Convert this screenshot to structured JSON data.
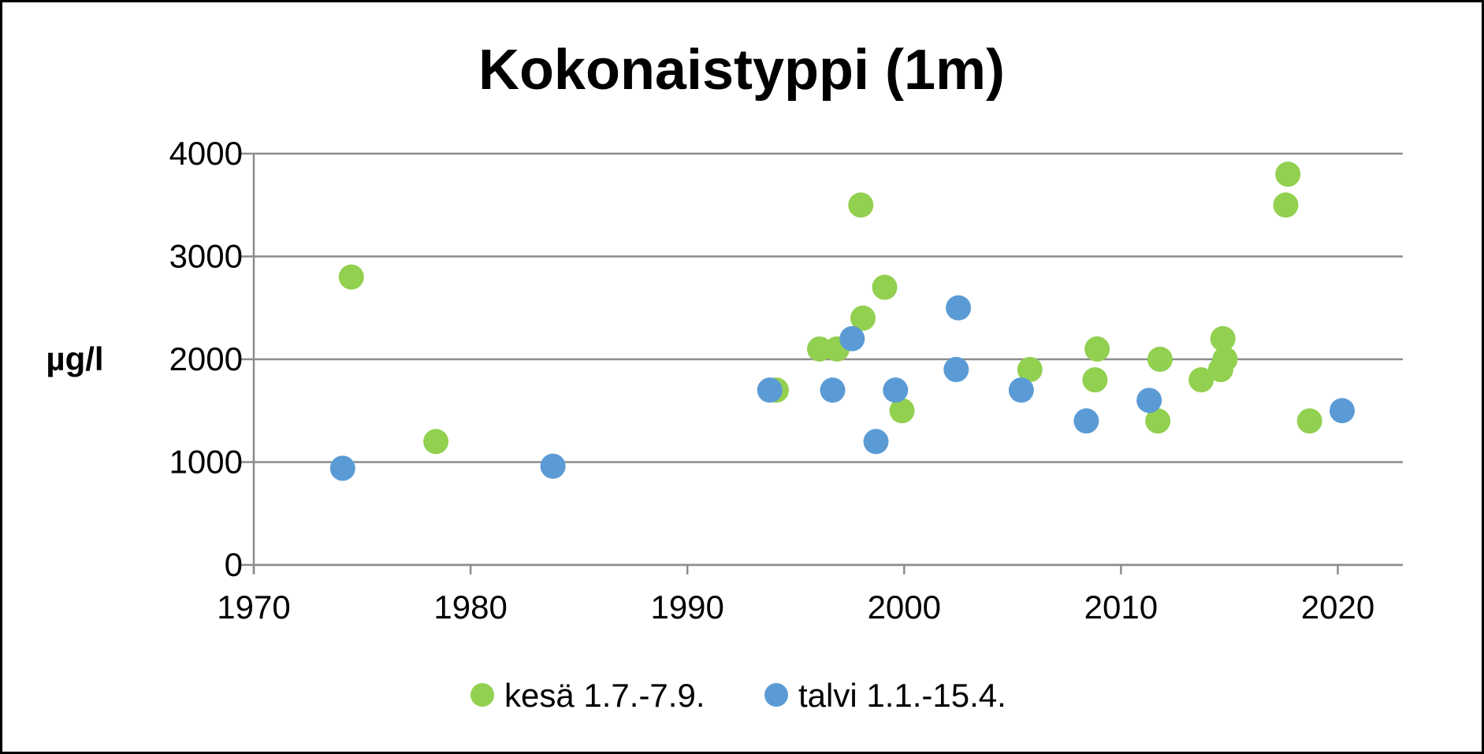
{
  "chart_data": {
    "type": "scatter",
    "title": "Kokonaistyppi (1m)",
    "xlabel": "",
    "ylabel": "µg/l",
    "xlim": [
      1970,
      2023
    ],
    "ylim": [
      0,
      4000
    ],
    "x_ticks": [
      "1970",
      "1980",
      "1990",
      "2000",
      "2010",
      "2020"
    ],
    "y_ticks": [
      "0",
      "1000",
      "2000",
      "3000",
      "4000"
    ],
    "grid": true,
    "legend": "bottom",
    "series": [
      {
        "name": "kesä 1.7.-7.9.",
        "color": "#92d050",
        "points": [
          [
            1974.5,
            2800
          ],
          [
            1978.4,
            1200
          ],
          [
            1994.1,
            1700
          ],
          [
            1996.1,
            2100
          ],
          [
            1996.9,
            2100
          ],
          [
            1998.0,
            3500
          ],
          [
            1998.1,
            2400
          ],
          [
            1999.1,
            2700
          ],
          [
            1999.9,
            1500
          ],
          [
            2005.8,
            1900
          ],
          [
            2008.8,
            1800
          ],
          [
            2008.9,
            2100
          ],
          [
            2011.7,
            1400
          ],
          [
            2011.8,
            2000
          ],
          [
            2013.7,
            1800
          ],
          [
            2014.6,
            1900
          ],
          [
            2014.7,
            2200
          ],
          [
            2014.8,
            2000
          ],
          [
            2017.6,
            3500
          ],
          [
            2017.7,
            3800
          ],
          [
            2018.7,
            1400
          ]
        ]
      },
      {
        "name": "talvi 1.1.-15.4.",
        "color": "#5b9bd5",
        "points": [
          [
            1974.1,
            940
          ],
          [
            1983.8,
            960
          ],
          [
            1993.8,
            1700
          ],
          [
            1996.7,
            1700
          ],
          [
            1997.6,
            2200
          ],
          [
            1998.7,
            1200
          ],
          [
            1999.6,
            1700
          ],
          [
            2002.4,
            1900
          ],
          [
            2002.5,
            2500
          ],
          [
            2005.4,
            1700
          ],
          [
            2008.4,
            1400
          ],
          [
            2011.3,
            1600
          ],
          [
            2020.2,
            1500
          ]
        ]
      }
    ]
  }
}
